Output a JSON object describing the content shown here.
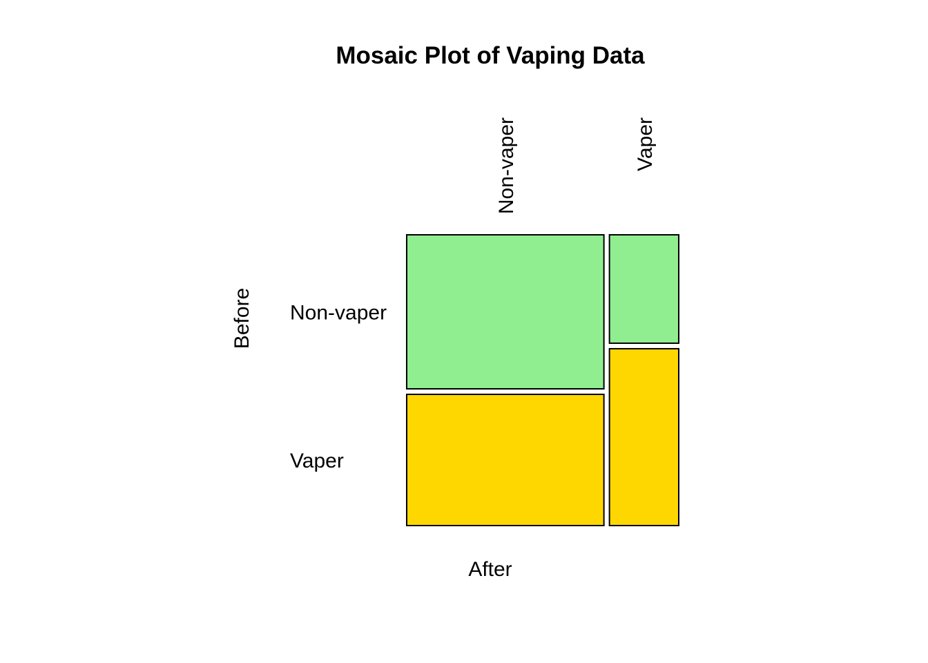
{
  "chart_data": {
    "type": "mosaic",
    "title": "Mosaic Plot of Vaping Data",
    "xlabel": "After",
    "ylabel": "Before",
    "x_categories": [
      "Non-vaper",
      "Vaper"
    ],
    "y_categories": [
      "Non-vaper",
      "Vaper"
    ],
    "column_proportions": [
      0.74,
      0.26
    ],
    "row_proportions_within_column": [
      {
        "column": "Non-vaper",
        "values": {
          "Non-vaper": 0.54,
          "Vaper": 0.46
        }
      },
      {
        "column": "Vaper",
        "values": {
          "Non-vaper": 0.38,
          "Vaper": 0.62
        }
      }
    ],
    "colors": {
      "Non-vaper": "#90EE90",
      "Vaper": "#FFD700"
    },
    "grid": false,
    "legend": "none"
  }
}
